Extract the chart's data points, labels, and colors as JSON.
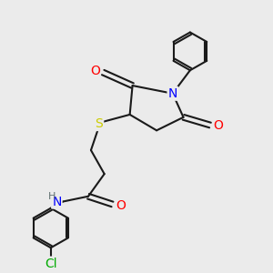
{
  "bg_color": "#ebebeb",
  "bond_color": "#1a1a1a",
  "bond_width": 1.5,
  "atom_colors": {
    "N": "#0000ff",
    "O": "#ff0000",
    "S": "#cccc00",
    "Cl": "#00aa00",
    "H": "#607070",
    "C": "#1a1a1a"
  },
  "font_size": 9
}
